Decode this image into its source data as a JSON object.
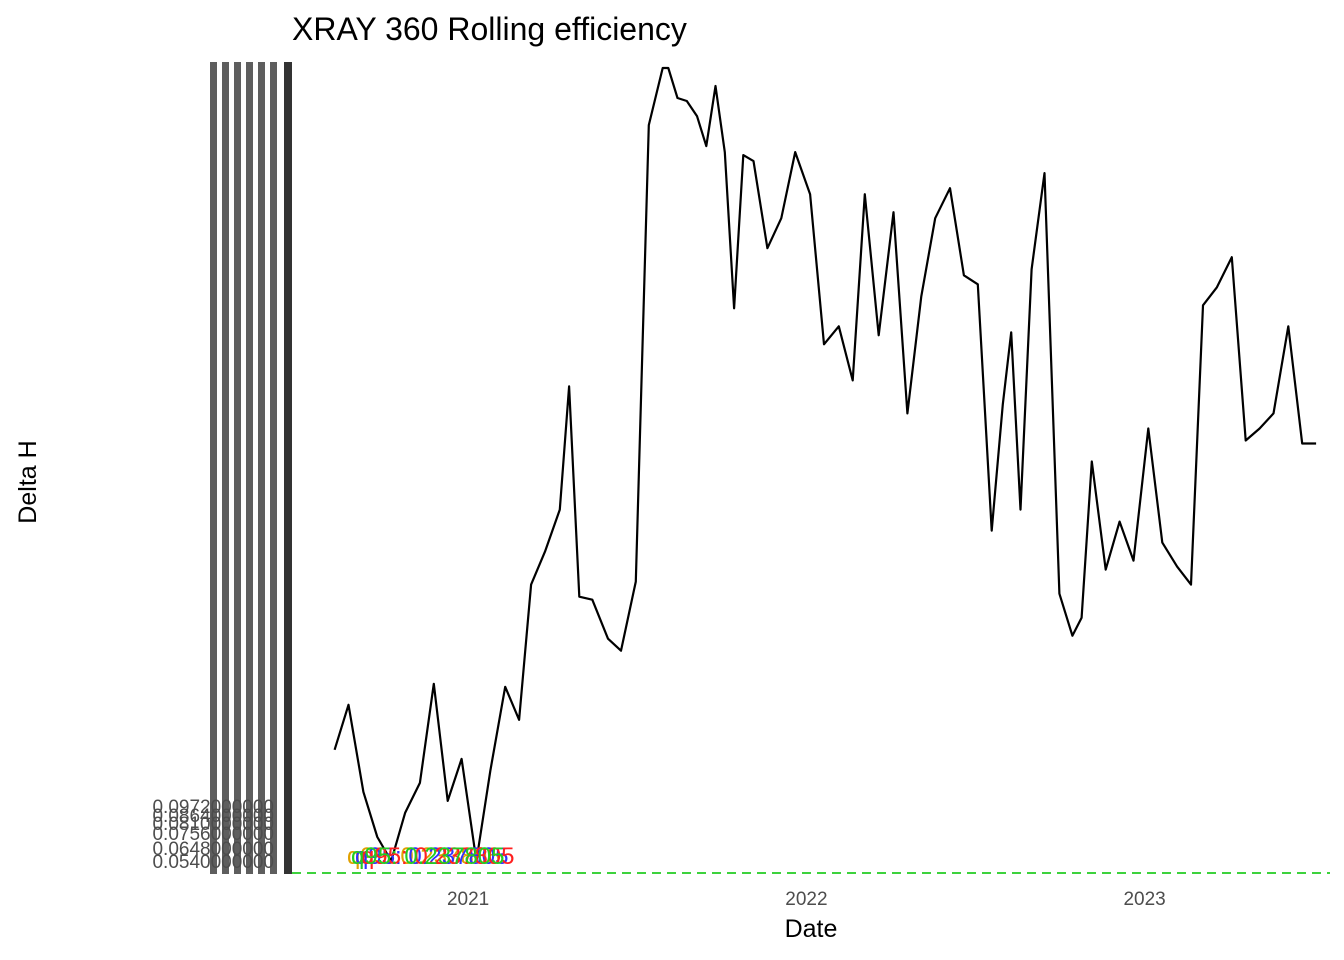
{
  "colors": {
    "line": "#000000",
    "tick_text": "#4d4d4d",
    "ticks_bar": "#333333",
    "threshold": "#22cc22",
    "annotation_main": "#22cc22",
    "annotation_secondary": [
      "#e0a000",
      "#3030ff",
      "#ff2020"
    ]
  },
  "chart_data": {
    "type": "line",
    "title": "XRAY 360 Rolling efficiency",
    "xlabel": "Date",
    "ylabel": "Delta H",
    "x_ticks": [
      "2021",
      "2022",
      "2023"
    ],
    "xlim": [
      "2020-06-25",
      "2023-07-20"
    ],
    "ylim": [
      0.06,
      0.33
    ],
    "ytick_labels": [
      "0.0972000000",
      "0.0864000000",
      "0.0810000000",
      "0.0756000000",
      "0.0648000000",
      "0.0540000000"
    ],
    "threshold": {
      "y": 0.06,
      "style": "dashed"
    },
    "annotation": "q95: 0.237805",
    "series": [
      {
        "x": [
          "2020-08-10",
          "2020-08-25",
          "2020-09-10",
          "2020-09-25",
          "2020-10-10",
          "2020-10-25",
          "2020-11-10",
          "2020-11-25",
          "2020-12-10",
          "2020-12-25",
          "2021-01-10",
          "2021-01-25",
          "2021-02-10",
          "2021-02-25",
          "2021-03-10",
          "2021-03-25",
          "2021-04-10",
          "2021-04-20",
          "2021-05-01",
          "2021-05-15",
          "2021-06-01",
          "2021-06-15",
          "2021-07-01",
          "2021-07-15",
          "2021-07-30",
          "2021-08-05",
          "2021-08-15",
          "2021-08-25",
          "2021-09-05",
          "2021-09-15",
          "2021-09-25",
          "2021-10-05",
          "2021-10-15",
          "2021-10-25",
          "2021-11-05",
          "2021-11-20",
          "2021-12-05",
          "2021-12-20",
          "2022-01-05",
          "2022-01-20",
          "2022-02-05",
          "2022-02-20",
          "2022-03-05",
          "2022-03-20",
          "2022-04-05",
          "2022-04-20",
          "2022-05-05",
          "2022-05-20",
          "2022-06-05",
          "2022-06-20",
          "2022-07-05",
          "2022-07-20",
          "2022-08-01",
          "2022-08-10",
          "2022-08-20",
          "2022-09-01",
          "2022-09-15",
          "2022-10-01",
          "2022-10-15",
          "2022-10-25",
          "2022-11-05",
          "2022-11-20",
          "2022-12-05",
          "2022-12-20",
          "2023-01-05",
          "2023-01-20",
          "2023-02-05",
          "2023-02-20",
          "2023-03-05",
          "2023-03-20",
          "2023-04-05",
          "2023-04-20",
          "2023-05-05",
          "2023-05-20",
          "2023-06-05",
          "2023-06-20",
          "2023-07-05"
        ],
        "y": [
          0.101,
          0.116,
          0.087,
          0.072,
          0.064,
          0.08,
          0.09,
          0.123,
          0.084,
          0.098,
          0.064,
          0.094,
          0.122,
          0.111,
          0.156,
          0.167,
          0.181,
          0.222,
          0.152,
          0.151,
          0.138,
          0.134,
          0.157,
          0.309,
          0.328,
          0.328,
          0.318,
          0.317,
          0.312,
          0.302,
          0.322,
          0.3,
          0.248,
          0.299,
          0.297,
          0.268,
          0.278,
          0.3,
          0.286,
          0.236,
          0.242,
          0.224,
          0.286,
          0.239,
          0.28,
          0.213,
          0.252,
          0.278,
          0.288,
          0.259,
          0.256,
          0.174,
          0.216,
          0.24,
          0.181,
          0.261,
          0.293,
          0.153,
          0.139,
          0.145,
          0.197,
          0.161,
          0.177,
          0.164,
          0.208,
          0.17,
          0.162,
          0.156,
          0.249,
          0.255,
          0.265,
          0.204,
          0.208,
          0.213,
          0.242,
          0.203,
          0.203
        ]
      }
    ]
  }
}
